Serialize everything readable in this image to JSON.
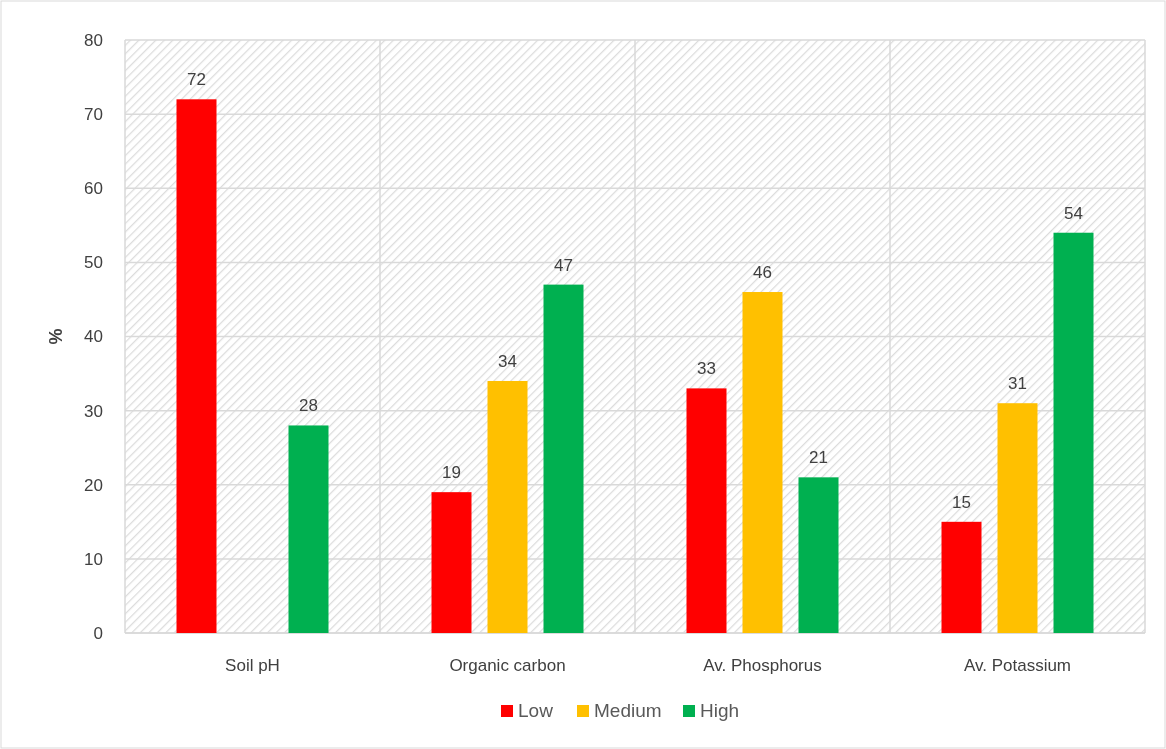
{
  "chart_data": {
    "type": "bar",
    "ylabel": "%",
    "categories": [
      "Soil pH",
      "Organic carbon",
      "Av. Phosphorus",
      "Av. Potassium"
    ],
    "series": [
      {
        "name": "Low",
        "color": "#ff0000",
        "values": [
          72,
          19,
          33,
          15
        ]
      },
      {
        "name": "Medium",
        "color": "#ffc000",
        "values": [
          null,
          34,
          46,
          31
        ]
      },
      {
        "name": "High",
        "color": "#00b050",
        "values": [
          28,
          47,
          21,
          54
        ]
      }
    ],
    "ylim": [
      0,
      80
    ],
    "yticks": [
      0,
      10,
      20,
      30,
      40,
      50,
      60,
      70,
      80
    ],
    "grid": true,
    "legend": "bottom",
    "data_labels": true
  }
}
